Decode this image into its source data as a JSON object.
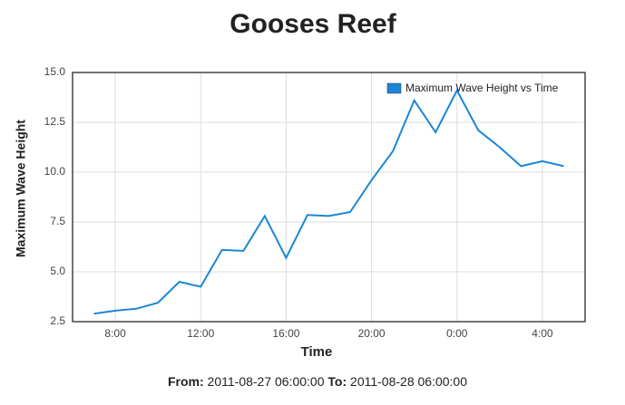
{
  "chart_data": {
    "type": "line",
    "title": "Gooses Reef",
    "x_label": "Time",
    "y_label": "Maximum Wave Height",
    "categories": [
      null,
      "8:00",
      null,
      null,
      null,
      "12:00",
      null,
      null,
      null,
      "16:00",
      null,
      null,
      null,
      "20:00",
      null,
      null,
      null,
      "0:00",
      null,
      null,
      null,
      "4:00",
      null
    ],
    "series": [
      {
        "name": "Maximum Wave Height vs Time",
        "color": "#1a87d6",
        "values": [
          2.9,
          3.05,
          3.15,
          3.45,
          4.5,
          4.25,
          6.1,
          6.05,
          7.8,
          5.7,
          7.85,
          7.8,
          8.0,
          9.6,
          11.05,
          13.6,
          12.0,
          14.1,
          12.1,
          11.25,
          10.3,
          10.55,
          10.3
        ]
      }
    ],
    "ylim": [
      2.5,
      15.0
    ],
    "yticks": [
      2.5,
      {
        "value": 5.0,
        "label": "5.0"
      },
      7.5,
      {
        "value": 10.0,
        "label": "10.0"
      },
      12.5,
      {
        "value": 15.0,
        "label": "15.0"
      }
    ],
    "grid": true,
    "legend": "upper right",
    "from_label": "From:",
    "from": "2011-08-27 06:00:00",
    "to_label": "To:",
    "to": "2011-08-28 06:00:00"
  }
}
